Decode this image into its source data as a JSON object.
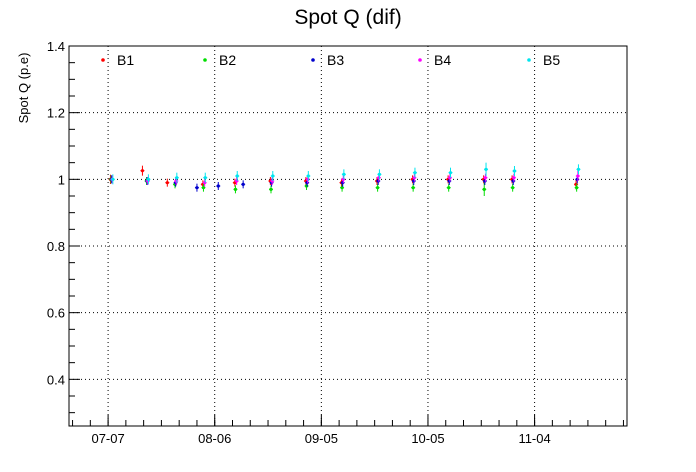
{
  "chart_data": {
    "type": "scatter",
    "title": "Spot Q (dif)",
    "xlabel": "",
    "ylabel": "Spot Q (p.e)",
    "x_axis_type": "date",
    "x_range": [
      "2015-06-26",
      "2015-11-30"
    ],
    "x_ticks": [
      {
        "date": "2015-07-07",
        "label": "07-07"
      },
      {
        "date": "2015-08-06",
        "label": "08-06"
      },
      {
        "date": "2015-09-05",
        "label": "09-05"
      },
      {
        "date": "2015-10-05",
        "label": "10-05"
      },
      {
        "date": "2015-11-04",
        "label": "11-04"
      }
    ],
    "ylim": [
      0.26,
      1.4
    ],
    "y_ticks": [
      0.4,
      0.6,
      0.8,
      1,
      1.2,
      1.4
    ],
    "y_tick_labels": [
      "0.4",
      "0.6",
      "0.8",
      "1",
      "1.2",
      "1.4"
    ],
    "grid": true,
    "grid_style": "dotted",
    "legend_position": "top, horizontal",
    "series": [
      {
        "name": "B1",
        "color": "#ff0000",
        "points": [
          {
            "x": "2015-07-08",
            "y": 1.0,
            "err": 0.014
          },
          {
            "x": "2015-07-17",
            "y": 1.026,
            "err": 0.015
          },
          {
            "x": "2015-07-24",
            "y": 0.99,
            "err": 0.012
          },
          {
            "x": "2015-08-03",
            "y": 0.985,
            "err": 0.012
          },
          {
            "x": "2015-08-12",
            "y": 0.99,
            "err": 0.012
          },
          {
            "x": "2015-08-22",
            "y": 0.995,
            "err": 0.012
          },
          {
            "x": "2015-09-01",
            "y": 0.995,
            "err": 0.012
          },
          {
            "x": "2015-09-11",
            "y": 0.99,
            "err": 0.012
          },
          {
            "x": "2015-09-21",
            "y": 0.995,
            "err": 0.012
          },
          {
            "x": "2015-10-01",
            "y": 1.0,
            "err": 0.012
          },
          {
            "x": "2015-10-11",
            "y": 1.0,
            "err": 0.012
          },
          {
            "x": "2015-10-21",
            "y": 1.0,
            "err": 0.012
          },
          {
            "x": "2015-10-29",
            "y": 1.0,
            "err": 0.012
          },
          {
            "x": "2015-11-16",
            "y": 0.985,
            "err": 0.015
          }
        ]
      },
      {
        "name": "B2",
        "color": "#00dd00",
        "points": [
          {
            "x": "2015-07-08",
            "y": 1.0,
            "err": 0.012
          },
          {
            "x": "2015-07-18",
            "y": 0.995,
            "err": 0.012
          },
          {
            "x": "2015-07-26",
            "y": 0.985,
            "err": 0.012
          },
          {
            "x": "2015-08-03",
            "y": 0.975,
            "err": 0.012
          },
          {
            "x": "2015-08-12",
            "y": 0.97,
            "err": 0.012
          },
          {
            "x": "2015-08-22",
            "y": 0.97,
            "err": 0.012
          },
          {
            "x": "2015-09-01",
            "y": 0.98,
            "err": 0.012
          },
          {
            "x": "2015-09-11",
            "y": 0.975,
            "err": 0.012
          },
          {
            "x": "2015-09-21",
            "y": 0.975,
            "err": 0.012
          },
          {
            "x": "2015-10-01",
            "y": 0.975,
            "err": 0.012
          },
          {
            "x": "2015-10-11",
            "y": 0.975,
            "err": 0.012
          },
          {
            "x": "2015-10-21",
            "y": 0.97,
            "err": 0.02
          },
          {
            "x": "2015-10-29",
            "y": 0.975,
            "err": 0.012
          },
          {
            "x": "2015-11-16",
            "y": 0.975,
            "err": 0.012
          }
        ]
      },
      {
        "name": "B3",
        "color": "#0000cc",
        "points": [
          {
            "x": "2015-07-08",
            "y": 1.0,
            "err": 0.012
          },
          {
            "x": "2015-07-18",
            "y": 0.995,
            "err": 0.012
          },
          {
            "x": "2015-07-26",
            "y": 0.99,
            "err": 0.012
          },
          {
            "x": "2015-08-01",
            "y": 0.975,
            "err": 0.012
          },
          {
            "x": "2015-08-07",
            "y": 0.98,
            "err": 0.012
          },
          {
            "x": "2015-08-14",
            "y": 0.985,
            "err": 0.012
          },
          {
            "x": "2015-08-22",
            "y": 0.99,
            "err": 0.012
          },
          {
            "x": "2015-09-01",
            "y": 0.99,
            "err": 0.012
          },
          {
            "x": "2015-09-11",
            "y": 0.99,
            "err": 0.012
          },
          {
            "x": "2015-09-21",
            "y": 0.995,
            "err": 0.012
          },
          {
            "x": "2015-10-01",
            "y": 0.995,
            "err": 0.012
          },
          {
            "x": "2015-10-11",
            "y": 0.995,
            "err": 0.012
          },
          {
            "x": "2015-10-21",
            "y": 0.995,
            "err": 0.012
          },
          {
            "x": "2015-10-29",
            "y": 0.995,
            "err": 0.012
          },
          {
            "x": "2015-11-16",
            "y": 1.0,
            "err": 0.012
          }
        ]
      },
      {
        "name": "B4",
        "color": "#ff00ff",
        "points": [
          {
            "x": "2015-07-08",
            "y": 1.0,
            "err": 0.012
          },
          {
            "x": "2015-07-18",
            "y": 0.995,
            "err": 0.012
          },
          {
            "x": "2015-07-26",
            "y": 0.995,
            "err": 0.012
          },
          {
            "x": "2015-08-03",
            "y": 0.99,
            "err": 0.012
          },
          {
            "x": "2015-08-12",
            "y": 0.995,
            "err": 0.012
          },
          {
            "x": "2015-08-22",
            "y": 0.995,
            "err": 0.012
          },
          {
            "x": "2015-09-01",
            "y": 1.0,
            "err": 0.012
          },
          {
            "x": "2015-09-11",
            "y": 1.0,
            "err": 0.012
          },
          {
            "x": "2015-09-21",
            "y": 1.005,
            "err": 0.012
          },
          {
            "x": "2015-10-01",
            "y": 1.005,
            "err": 0.012
          },
          {
            "x": "2015-10-11",
            "y": 1.005,
            "err": 0.012
          },
          {
            "x": "2015-10-21",
            "y": 1.005,
            "err": 0.012
          },
          {
            "x": "2015-10-29",
            "y": 1.005,
            "err": 0.012
          },
          {
            "x": "2015-11-16",
            "y": 1.01,
            "err": 0.015
          }
        ]
      },
      {
        "name": "B5",
        "color": "#00e5ee",
        "points": [
          {
            "x": "2015-07-08",
            "y": 1.0,
            "err": 0.015
          },
          {
            "x": "2015-07-18",
            "y": 1.0,
            "err": 0.015
          },
          {
            "x": "2015-07-26",
            "y": 1.005,
            "err": 0.015
          },
          {
            "x": "2015-08-03",
            "y": 1.005,
            "err": 0.015
          },
          {
            "x": "2015-08-12",
            "y": 1.01,
            "err": 0.015
          },
          {
            "x": "2015-08-22",
            "y": 1.01,
            "err": 0.015
          },
          {
            "x": "2015-09-01",
            "y": 1.01,
            "err": 0.015
          },
          {
            "x": "2015-09-11",
            "y": 1.015,
            "err": 0.015
          },
          {
            "x": "2015-09-21",
            "y": 1.015,
            "err": 0.015
          },
          {
            "x": "2015-10-01",
            "y": 1.02,
            "err": 0.015
          },
          {
            "x": "2015-10-11",
            "y": 1.02,
            "err": 0.015
          },
          {
            "x": "2015-10-21",
            "y": 1.03,
            "err": 0.02
          },
          {
            "x": "2015-10-29",
            "y": 1.025,
            "err": 0.015
          },
          {
            "x": "2015-11-16",
            "y": 1.03,
            "err": 0.015
          }
        ]
      }
    ]
  }
}
